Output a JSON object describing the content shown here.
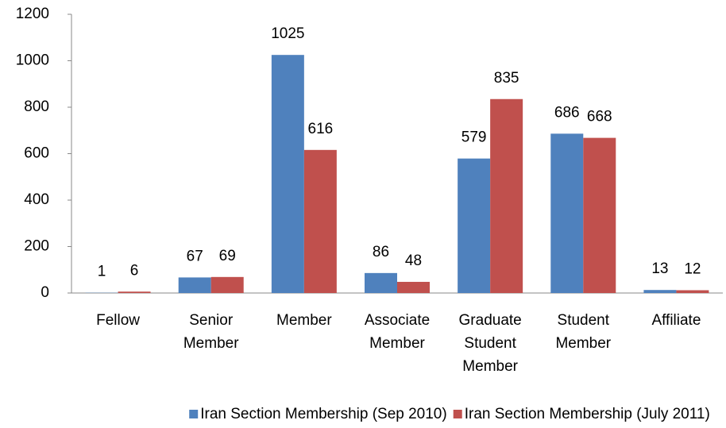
{
  "chart_data": {
    "type": "bar",
    "categories": [
      "Fellow",
      "Senior Member",
      "Member",
      "Associate Member",
      "Graduate Student Member",
      "Student Member",
      "Affiliate"
    ],
    "series": [
      {
        "name": "Iran Section Membership (Sep 2010)",
        "color": "#4f81bd",
        "values": [
          1,
          67,
          1025,
          86,
          579,
          686,
          13
        ]
      },
      {
        "name": "Iran Section Membership (July 2011)",
        "color": "#c0504d",
        "values": [
          6,
          69,
          616,
          48,
          835,
          668,
          12
        ]
      }
    ],
    "ylim": [
      0,
      1200
    ],
    "yticks": [
      0,
      200,
      400,
      600,
      800,
      1000,
      1200
    ],
    "legend": "bottom"
  }
}
